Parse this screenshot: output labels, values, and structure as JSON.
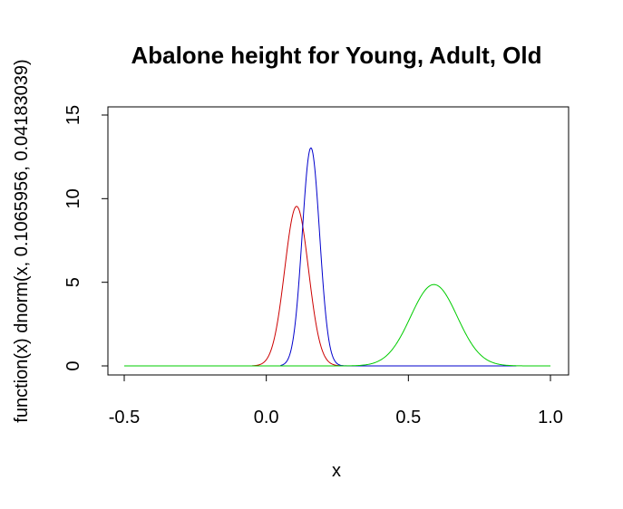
{
  "chart_data": {
    "type": "line",
    "title": "Abalone height for Young, Adult, Old",
    "xlabel": "x",
    "ylabel": "function(x) dnorm(x, 0.1065956, 0.04183039)",
    "xlim": [
      -0.5,
      1.0
    ],
    "ylim": [
      0,
      15
    ],
    "xticks": [
      "-0.5",
      "0.0",
      "0.5",
      "1.0"
    ],
    "yticks": [
      "0",
      "5",
      "10",
      "15"
    ],
    "xtick_values": [
      -0.5,
      0.0,
      0.5,
      1.0
    ],
    "ytick_values": [
      0,
      5,
      10,
      15
    ],
    "grid": false,
    "legend": "none",
    "series": [
      {
        "color": "#cc0000",
        "mean": 0.1065956,
        "sd": 0.04183039,
        "x_range": [
          -0.05,
          0.27
        ]
      },
      {
        "color": "#0000cc",
        "mean": 0.157,
        "sd": 0.0306,
        "x_range": [
          0.05,
          0.88
        ]
      },
      {
        "color": "#00cc00",
        "mean": 0.59,
        "sd": 0.082,
        "x_range": [
          -0.5,
          1.0
        ]
      }
    ]
  }
}
